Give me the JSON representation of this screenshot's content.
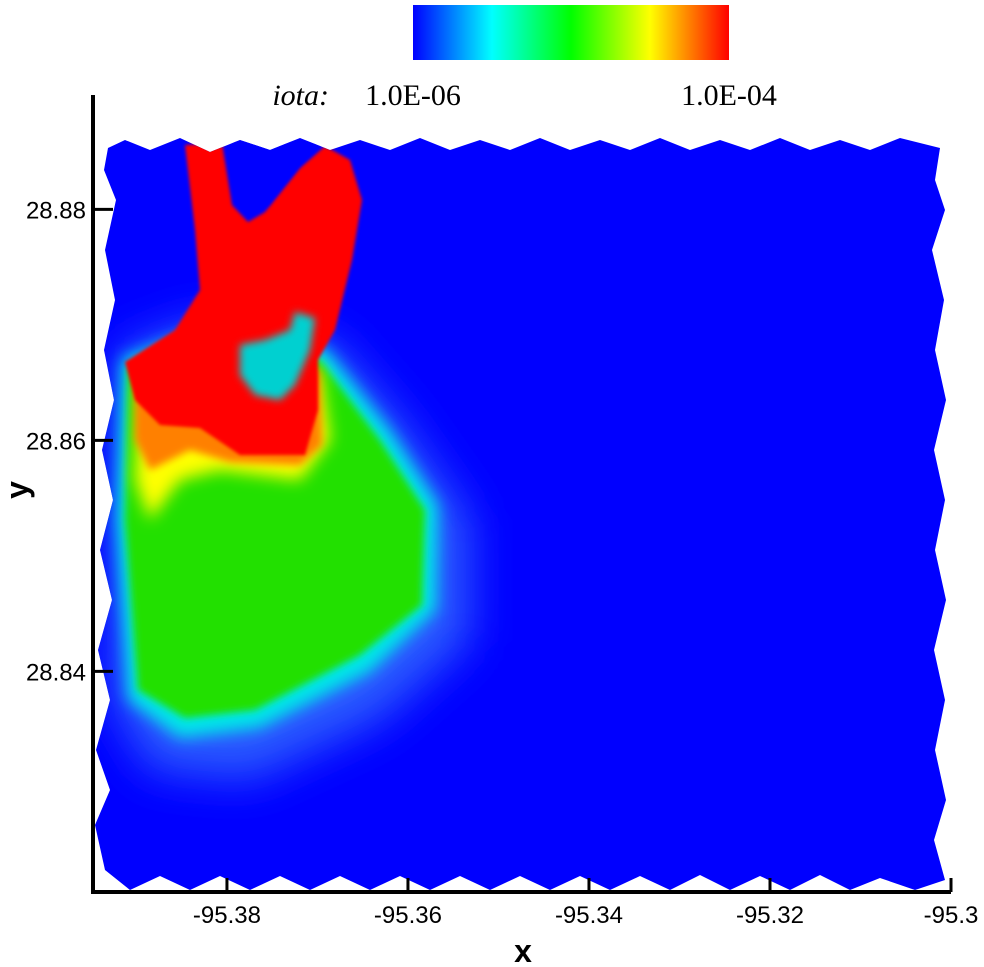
{
  "chart_data": {
    "type": "contour",
    "x_label": "x",
    "y_label": "y",
    "xlim": [
      -95.3948,
      -95.3
    ],
    "ylim": [
      28.8209,
      28.8899
    ],
    "xticks": [
      -95.38,
      -95.36,
      -95.34,
      -95.32,
      -95.3
    ],
    "yticks": [
      28.84,
      28.86,
      28.88
    ],
    "colorbar": {
      "label": "iota:",
      "log": true,
      "clim": [
        1e-06,
        0.0001
      ],
      "ticks": [
        {
          "value": 1e-06,
          "label": "1.0E-06"
        },
        {
          "value": 0.0001,
          "label": "1.0E-04"
        }
      ],
      "colormap": [
        "#0000ff",
        "#00ffff",
        "#00ff00",
        "#ffff00",
        "#ff0000"
      ]
    }
  }
}
